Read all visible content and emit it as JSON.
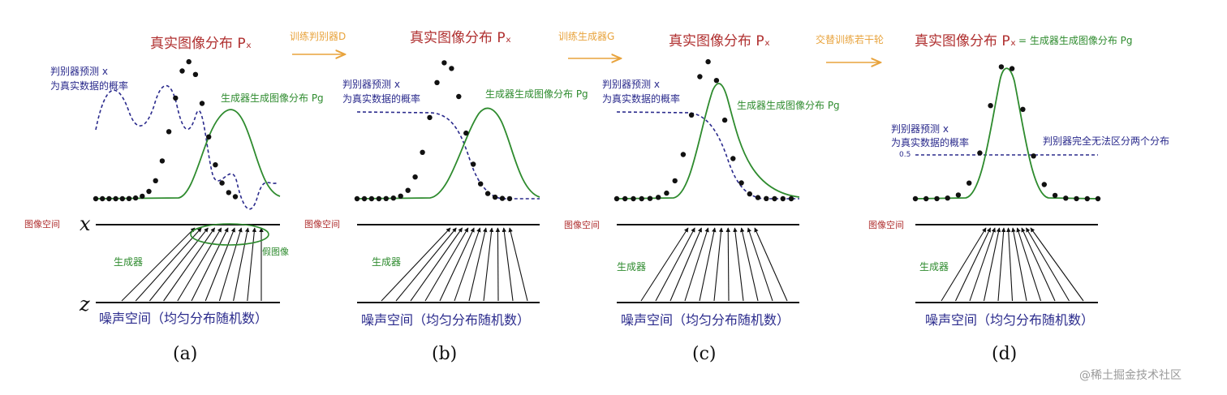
{
  "common": {
    "real_dist": "真实图像分布 Pₓ",
    "image_space": "图像空间",
    "generator": "生成器",
    "disc_predict": "判别器预测 x",
    "disc_predict_2": "为真实数据的概率",
    "gen_dist": "生成器生成图像分布 Pg",
    "noise_space": "噪声空间（均匀分布随机数）",
    "x_label": "x",
    "z_label": "z"
  },
  "panels": [
    {
      "caption": "(a)",
      "fake_label": "假图像"
    },
    {
      "caption": "(b)"
    },
    {
      "caption": "(c)"
    },
    {
      "caption": "(d)",
      "title_eq": "真实图像分布 Pₓ = 生成器生成图像分布 Pg",
      "disc_cannot": "判别器完全无法区分两个分布",
      "half": "0.5"
    }
  ],
  "transitions": [
    {
      "label": "训练判别器D"
    },
    {
      "label": "训练生成器G"
    },
    {
      "label": "交替训练若干轮"
    }
  ],
  "watermark": "@稀土掘金技术社区",
  "colors": {
    "real": "#111111",
    "gen": "#2e8b2e",
    "disc": "#2a2a8c",
    "title": "#b03030",
    "arrow": "#e8a33c"
  }
}
